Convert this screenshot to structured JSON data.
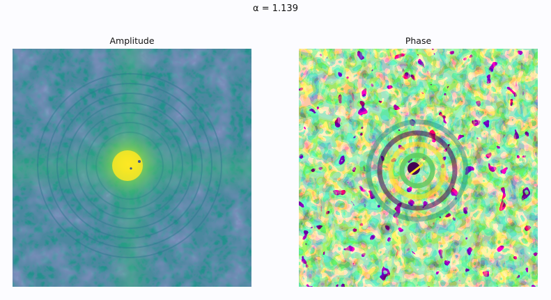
{
  "figure": {
    "suptitle": "α = 1.139"
  },
  "panels": [
    {
      "title": "Amplitude",
      "colormap": "viridis"
    },
    {
      "title": "Phase",
      "colormap": "viridis"
    }
  ],
  "colors": {
    "background": "#fcfcff",
    "viridis": [
      "#440154",
      "#3b528b",
      "#21918c",
      "#5ec962",
      "#fde725"
    ]
  }
}
